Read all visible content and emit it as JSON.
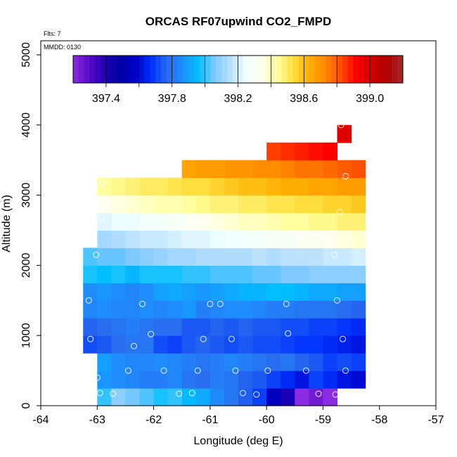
{
  "chart_data": {
    "type": "heatmap",
    "title": "ORCAS RF07upwind CO2_FMPD",
    "flights_text": "Flts: 7",
    "mmdd_text": "MMDD: 0130",
    "xlabel": "Longitude (deg E)",
    "ylabel": "Altitude (m)",
    "xlim": [
      -64,
      -57
    ],
    "ylim": [
      0,
      5200
    ],
    "xticks": [
      -64,
      -63,
      -62,
      -61,
      -60,
      -59,
      -58,
      -57
    ],
    "xtick_labels": [
      "-64",
      "-63",
      "-62",
      "-61",
      "-60",
      "-59",
      "-58",
      "-57"
    ],
    "yticks": [
      0,
      1000,
      2000,
      3000,
      4000,
      5000
    ],
    "ytick_labels": [
      "0",
      "1000",
      "2000",
      "3000",
      "4000",
      "5000"
    ],
    "colorbar": {
      "min": 397.2,
      "max": 399.2,
      "ticks": [
        397.4,
        397.8,
        398.2,
        398.6,
        399.0
      ],
      "tick_labels": [
        "397.4",
        "397.8",
        "398.2",
        "398.6",
        "399.0"
      ],
      "colors": [
        "#8b2be2",
        "#5a0cc8",
        "#1d00b8",
        "#0000a0",
        "#0000cc",
        "#0033ff",
        "#2a6bee",
        "#1e90ff",
        "#00bfff",
        "#7ec8ff",
        "#b8e0ff",
        "#f0ffff",
        "#fffff0",
        "#ffffa0",
        "#ffe040",
        "#ffb000",
        "#ff8c00",
        "#ff5000",
        "#ff0000",
        "#d00000",
        "#b00000",
        "#a52a2a"
      ]
    },
    "cell_width_deg": 0.25,
    "cell_height_m": 250,
    "rows": [
      {
        "alt": 125,
        "lon_start": -63.0,
        "values": [
          398.0,
          398.08,
          398.05,
          398.02,
          397.98,
          398.0,
          397.95,
          397.92,
          397.85,
          397.8,
          397.75,
          397.7,
          397.55,
          397.4,
          397.2,
          397.25,
          397.1
        ]
      },
      {
        "alt": 375,
        "lon_start": -63.0,
        "values": [
          397.88,
          397.86,
          397.84,
          397.82,
          397.82,
          397.84,
          397.8,
          397.78,
          397.82,
          397.8,
          397.76,
          397.74,
          397.7,
          397.66,
          397.62,
          397.7,
          397.66,
          397.62,
          397.6
        ]
      },
      {
        "alt": 625,
        "lon_start": -63.0,
        "values": [
          397.9,
          397.86,
          397.84,
          397.84,
          397.86,
          397.84,
          397.82,
          397.8,
          397.82,
          397.84,
          397.82,
          397.8,
          397.78,
          397.8,
          397.76,
          397.74,
          397.7,
          397.72,
          397.7
        ]
      },
      {
        "alt": 875,
        "lon_start": -63.25,
        "values": [
          397.72,
          397.74,
          397.78,
          397.8,
          397.8,
          397.72,
          397.7,
          397.74,
          397.76,
          397.74,
          397.72,
          397.74,
          397.72,
          397.72,
          397.7,
          397.68,
          397.68,
          397.66,
          397.64,
          397.62
        ]
      },
      {
        "alt": 1125,
        "lon_start": -63.25,
        "values": [
          397.76,
          397.78,
          397.8,
          397.82,
          397.8,
          397.78,
          397.78,
          397.74,
          397.74,
          397.76,
          397.74,
          397.76,
          397.74,
          397.74,
          397.72,
          397.72,
          397.7,
          397.7,
          397.68,
          397.66
        ]
      },
      {
        "alt": 1375,
        "lon_start": -63.25,
        "values": [
          397.84,
          397.86,
          397.84,
          397.84,
          397.86,
          397.84,
          397.86,
          397.88,
          397.82,
          397.84,
          397.86,
          397.86,
          397.84,
          397.82,
          397.82,
          397.8,
          397.8,
          397.8,
          397.78,
          397.76
        ]
      },
      {
        "alt": 1625,
        "lon_start": -63.25,
        "values": [
          397.86,
          397.88,
          397.86,
          397.84,
          397.86,
          397.9,
          397.92,
          397.9,
          397.88,
          397.9,
          397.92,
          397.94,
          397.94,
          397.96,
          397.96,
          397.94,
          397.92,
          397.92,
          397.9,
          397.9
        ]
      },
      {
        "alt": 1875,
        "lon_start": -63.25,
        "values": [
          397.98,
          397.96,
          397.98,
          397.94,
          397.98,
          397.98,
          397.98,
          398.0,
          398.0,
          398.02,
          398.02,
          398.02,
          398.04,
          398.04,
          398.06,
          398.06,
          398.08,
          398.08,
          398.08,
          398.08
        ]
      },
      {
        "alt": 2125,
        "lon_start": -63.25,
        "values": [
          398.02,
          398.04,
          398.04,
          398.06,
          398.08,
          398.1,
          398.12,
          398.12,
          398.14,
          398.14,
          398.14,
          398.14,
          398.16,
          398.14,
          398.16,
          398.16,
          398.16,
          398.18,
          398.18,
          398.2
        ]
      },
      {
        "alt": 2375,
        "lon_start": -63.0,
        "values": [
          398.12,
          398.14,
          398.16,
          398.18,
          398.18,
          398.2,
          398.22,
          398.22,
          398.24,
          398.26,
          398.26,
          398.28,
          398.3,
          398.3,
          398.32,
          398.32,
          398.34,
          398.36,
          398.38
        ]
      },
      {
        "alt": 2625,
        "lon_start": -63.0,
        "values": [
          398.22,
          398.24,
          398.24,
          398.26,
          398.28,
          398.3,
          398.32,
          398.34,
          398.36,
          398.38,
          398.4,
          398.4,
          398.42,
          398.44,
          398.44,
          398.46,
          398.46,
          398.48,
          398.48
        ]
      },
      {
        "alt": 2875,
        "lon_start": -63.0,
        "values": [
          398.34,
          398.36,
          398.38,
          398.4,
          398.42,
          398.42,
          398.44,
          398.46,
          398.48,
          398.48,
          398.5,
          398.5,
          398.52,
          398.52,
          398.54,
          398.54,
          398.56,
          398.56,
          398.58
        ]
      },
      {
        "alt": 3125,
        "lon_start": -63.0,
        "values": [
          398.44,
          398.46,
          398.48,
          398.5,
          398.5,
          398.52,
          398.54,
          398.54,
          398.56,
          398.58,
          398.6,
          398.6,
          398.62,
          398.64,
          398.64,
          398.66,
          398.66,
          398.68,
          398.68
        ]
      },
      {
        "alt": 3375,
        "lon_start": -61.5,
        "values": [
          398.66,
          398.68,
          398.68,
          398.7,
          398.7,
          398.72,
          398.72,
          398.74,
          398.76,
          398.76,
          398.78,
          398.8,
          398.82
        ]
      },
      {
        "alt": 3625,
        "lon_start": -60.0,
        "values": [
          398.84,
          398.86,
          398.88,
          398.9,
          398.92
        ]
      },
      {
        "alt": 3875,
        "lon_start": -58.75,
        "values": [
          398.98
        ]
      }
    ],
    "points": [
      {
        "lon": -62.92,
        "alt": 3170
      },
      {
        "lon": -62.92,
        "alt": 2680
      },
      {
        "lon": -63.02,
        "alt": 2150
      },
      {
        "lon": -63.15,
        "alt": 1500
      },
      {
        "lon": -63.12,
        "alt": 950
      },
      {
        "lon": -62.2,
        "alt": 1450
      },
      {
        "lon": -62.05,
        "alt": 1020
      },
      {
        "lon": -62.35,
        "alt": 850
      },
      {
        "lon": -61.0,
        "alt": 1450
      },
      {
        "lon": -60.82,
        "alt": 1450
      },
      {
        "lon": -61.12,
        "alt": 950
      },
      {
        "lon": -60.62,
        "alt": 950
      },
      {
        "lon": -59.65,
        "alt": 1450
      },
      {
        "lon": -59.62,
        "alt": 1030
      },
      {
        "lon": -58.75,
        "alt": 1500
      },
      {
        "lon": -58.65,
        "alt": 950
      },
      {
        "lon": -58.68,
        "alt": 4000
      },
      {
        "lon": -58.6,
        "alt": 3270
      },
      {
        "lon": -58.7,
        "alt": 2760
      },
      {
        "lon": -58.8,
        "alt": 2150
      },
      {
        "lon": -63.0,
        "alt": 400
      },
      {
        "lon": -62.45,
        "alt": 500
      },
      {
        "lon": -61.82,
        "alt": 500
      },
      {
        "lon": -61.22,
        "alt": 500
      },
      {
        "lon": -60.55,
        "alt": 500
      },
      {
        "lon": -59.98,
        "alt": 500
      },
      {
        "lon": -59.3,
        "alt": 500
      },
      {
        "lon": -58.6,
        "alt": 500
      },
      {
        "lon": -62.95,
        "alt": 180
      },
      {
        "lon": -62.72,
        "alt": 170
      },
      {
        "lon": -61.55,
        "alt": 170
      },
      {
        "lon": -61.32,
        "alt": 180
      },
      {
        "lon": -60.42,
        "alt": 180
      },
      {
        "lon": -60.18,
        "alt": 160
      },
      {
        "lon": -59.08,
        "alt": 170
      },
      {
        "lon": -58.78,
        "alt": 160
      }
    ]
  }
}
